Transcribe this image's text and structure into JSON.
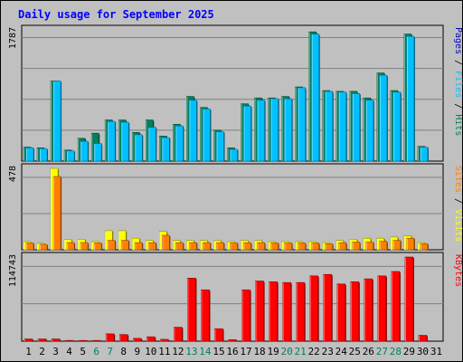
{
  "chart_data": [
    {
      "type": "bar",
      "title": "Daily usage for September 2025",
      "categories": [
        "1",
        "2",
        "3",
        "4",
        "5",
        "6",
        "7",
        "8",
        "9",
        "10",
        "11",
        "12",
        "13",
        "14",
        "15",
        "16",
        "17",
        "18",
        "19",
        "20",
        "21",
        "22",
        "23",
        "24",
        "25",
        "26",
        "27",
        "28",
        "29",
        "30",
        "31"
      ],
      "weekend_days": [
        "6",
        "7",
        "13",
        "14",
        "20",
        "21",
        "27",
        "28"
      ],
      "ymax_label": "1787",
      "ylim": [
        0,
        1787
      ],
      "axis_label_parts": [
        "Pages",
        " / ",
        "Files",
        " / ",
        "Hits"
      ],
      "series": [
        {
          "name": "Hits",
          "color": "#00805c",
          "values": [
            190,
            180,
            1090,
            150,
            310,
            380,
            560,
            560,
            390,
            560,
            340,
            500,
            880,
            730,
            420,
            180,
            780,
            860,
            860,
            880,
            1010,
            1760,
            960,
            950,
            950,
            860,
            1200,
            960,
            1730,
            200,
            0
          ]
        },
        {
          "name": "Files",
          "color": "#00c0ff",
          "values": [
            180,
            170,
            1090,
            140,
            270,
            240,
            540,
            530,
            360,
            460,
            320,
            480,
            830,
            710,
            400,
            160,
            750,
            830,
            850,
            850,
            1000,
            1730,
            950,
            940,
            920,
            830,
            1170,
            940,
            1700,
            190,
            0
          ]
        },
        {
          "name": "Pages",
          "color": "#0000c0",
          "values": [
            0,
            0,
            0,
            0,
            0,
            0,
            0,
            0,
            0,
            0,
            0,
            0,
            0,
            0,
            0,
            0,
            0,
            0,
            0,
            0,
            0,
            0,
            0,
            0,
            0,
            0,
            0,
            0,
            0,
            0,
            0
          ]
        }
      ]
    },
    {
      "type": "bar",
      "ymax_label": "478",
      "ylim": [
        0,
        478
      ],
      "axis_label_parts": [
        "Sites",
        " / ",
        "Visits"
      ],
      "series": [
        {
          "name": "Visits",
          "color": "#ffff00",
          "values": [
            48,
            38,
            478,
            62,
            62,
            48,
            112,
            112,
            68,
            55,
            108,
            55,
            55,
            55,
            55,
            48,
            55,
            55,
            48,
            48,
            48,
            48,
            42,
            55,
            62,
            68,
            68,
            75,
            82,
            42,
            0
          ]
        },
        {
          "name": "Sites",
          "color": "#ff8000",
          "values": [
            40,
            32,
            430,
            42,
            42,
            40,
            55,
            55,
            42,
            42,
            85,
            42,
            42,
            42,
            42,
            40,
            42,
            42,
            40,
            40,
            40,
            40,
            35,
            42,
            45,
            45,
            50,
            55,
            68,
            35,
            0
          ]
        }
      ]
    },
    {
      "type": "bar",
      "ymax_label": "114743",
      "ylim": [
        0,
        114743
      ],
      "axis_label_parts": [
        "KBytes"
      ],
      "series": [
        {
          "name": "KBytes",
          "color": "#ff0000",
          "values": [
            3000,
            3000,
            3000,
            1000,
            1000,
            1000,
            10000,
            9000,
            3800,
            6000,
            2500,
            19000,
            86000,
            70000,
            17000,
            2000,
            70000,
            82000,
            81000,
            80000,
            80000,
            89000,
            91000,
            78000,
            81000,
            85000,
            89000,
            95000,
            114743,
            8000,
            0
          ]
        }
      ]
    }
  ],
  "colors": {
    "background": "#c0c0c0",
    "plot": "#c0c0c0",
    "title": "#0000ff",
    "weekday": "#000000",
    "weekend": "#00805c"
  }
}
